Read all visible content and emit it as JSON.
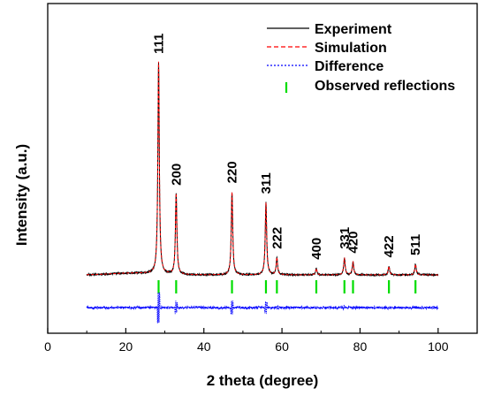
{
  "chart_data": {
    "type": "line",
    "xlabel": "2 theta (degree)",
    "ylabel": "Intensity (a.u.)",
    "xlim": [
      0,
      110
    ],
    "xticks": [
      0,
      20,
      40,
      60,
      80,
      100
    ],
    "x_range": [
      10,
      100
    ],
    "grid": false,
    "legend_position": "top-right",
    "legend": [
      {
        "name": "Experiment",
        "style": "solid",
        "color": "#000000"
      },
      {
        "name": "Simulation",
        "style": "dashed",
        "color": "#ff0000"
      },
      {
        "name": "Difference",
        "style": "dotted",
        "color": "#0000ff"
      },
      {
        "name": "Observed reflections",
        "style": "tick",
        "color": "#00dd00"
      }
    ],
    "peaks": [
      {
        "hkl": "111",
        "two_theta": 28.4,
        "relative_intensity": 100
      },
      {
        "hkl": "200",
        "two_theta": 32.9,
        "relative_intensity": 38
      },
      {
        "hkl": "220",
        "two_theta": 47.2,
        "relative_intensity": 39
      },
      {
        "hkl": "311",
        "two_theta": 55.9,
        "relative_intensity": 34
      },
      {
        "hkl": "222",
        "two_theta": 58.7,
        "relative_intensity": 8
      },
      {
        "hkl": "400",
        "two_theta": 68.8,
        "relative_intensity": 3
      },
      {
        "hkl": "331",
        "two_theta": 76.0,
        "relative_intensity": 8
      },
      {
        "hkl": "420",
        "two_theta": 78.2,
        "relative_intensity": 6
      },
      {
        "hkl": "422",
        "two_theta": 87.4,
        "relative_intensity": 4
      },
      {
        "hkl": "511",
        "two_theta": 94.2,
        "relative_intensity": 5
      }
    ]
  }
}
